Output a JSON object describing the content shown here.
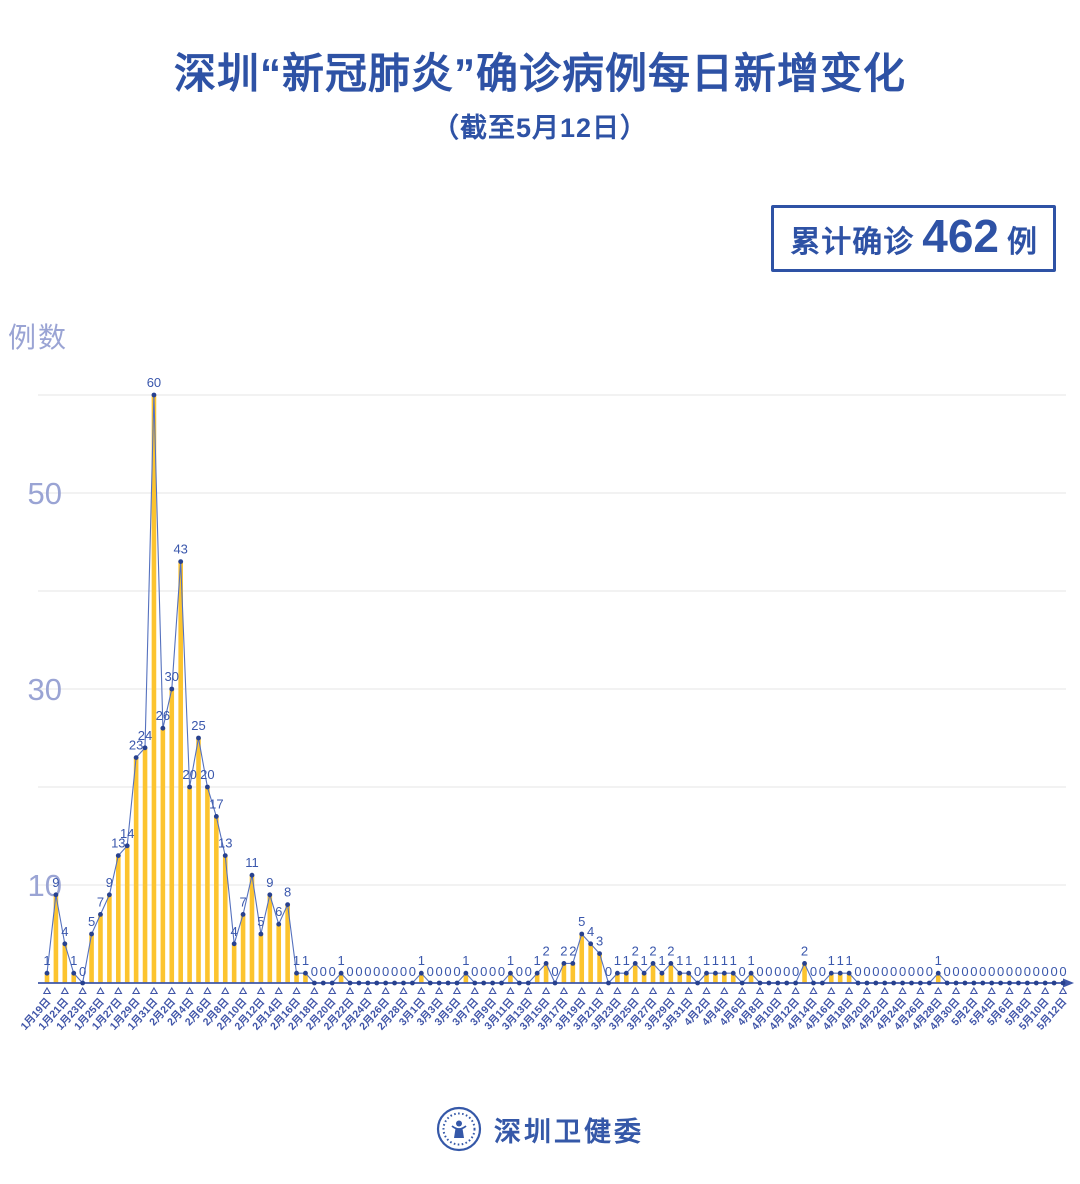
{
  "header": {
    "title": "深圳“新冠肺炎”确诊病例每日新增变化",
    "subtitle": "（截至5月12日）"
  },
  "summary_badge": {
    "prefix": "累计确诊",
    "value": "462",
    "suffix": "例"
  },
  "footer": {
    "org": "深圳卫健委"
  },
  "colors": {
    "primary_blue": "#2E52A5",
    "bar_yellow": "#FCC42F",
    "line_blue": "#5571BE",
    "dot_blue": "#27418F",
    "value_label_blue": "#3A57AC",
    "axis_blue": "#3E57A8",
    "x_tick_label_blue": "#4055A8",
    "y_label_periwinkle": "#9AA4D4",
    "gridline_gray": "#E9E9E9"
  },
  "chart_data": {
    "type": "bar",
    "title": "深圳“新冠肺炎”确诊病例每日新增变化",
    "subtitle": "（截至5月12日）",
    "annotation": "累计确诊 462 例",
    "total": 462,
    "xlabel": "",
    "ylabel": "例数",
    "ylim": [
      0,
      62
    ],
    "yticks_labeled": [
      10,
      30,
      50
    ],
    "gridlines": [
      10,
      20,
      30,
      40,
      50,
      60
    ],
    "grid": true,
    "legend": "none",
    "x_label_interval": 2,
    "x": [
      "1月19日",
      "1月20日",
      "1月21日",
      "1月22日",
      "1月23日",
      "1月24日",
      "1月25日",
      "1月26日",
      "1月27日",
      "1月28日",
      "1月29日",
      "1月30日",
      "1月31日",
      "2月1日",
      "2月2日",
      "2月3日",
      "2月4日",
      "2月5日",
      "2月6日",
      "2月7日",
      "2月8日",
      "2月9日",
      "2月10日",
      "2月11日",
      "2月12日",
      "2月13日",
      "2月14日",
      "2月15日",
      "2月16日",
      "2月17日",
      "2月18日",
      "2月19日",
      "2月20日",
      "2月21日",
      "2月22日",
      "2月23日",
      "2月24日",
      "2月25日",
      "2月26日",
      "2月27日",
      "2月28日",
      "2月29日",
      "3月1日",
      "3月2日",
      "3月3日",
      "3月4日",
      "3月5日",
      "3月6日",
      "3月7日",
      "3月8日",
      "3月9日",
      "3月10日",
      "3月11日",
      "3月12日",
      "3月13日",
      "3月14日",
      "3月15日",
      "3月16日",
      "3月17日",
      "3月18日",
      "3月19日",
      "3月20日",
      "3月21日",
      "3月22日",
      "3月23日",
      "3月24日",
      "3月25日",
      "3月26日",
      "3月27日",
      "3月28日",
      "3月29日",
      "3月30日",
      "3月31日",
      "4月1日",
      "4月2日",
      "4月3日",
      "4月4日",
      "4月5日",
      "4月6日",
      "4月7日",
      "4月8日",
      "4月9日",
      "4月10日",
      "4月11日",
      "4月12日",
      "4月13日",
      "4月14日",
      "4月15日",
      "4月16日",
      "4月17日",
      "4月18日",
      "4月19日",
      "4月20日",
      "4月21日",
      "4月22日",
      "4月23日",
      "4月24日",
      "4月25日",
      "4月26日",
      "4月27日",
      "4月28日",
      "4月29日",
      "4月30日",
      "5月1日",
      "5月2日",
      "5月3日",
      "5月4日",
      "5月5日",
      "5月6日",
      "5月7日",
      "5月8日",
      "5月9日",
      "5月10日",
      "5月11日",
      "5月12日"
    ],
    "values": [
      1,
      9,
      4,
      1,
      0,
      5,
      7,
      9,
      13,
      14,
      23,
      24,
      60,
      26,
      30,
      43,
      20,
      25,
      20,
      17,
      13,
      4,
      7,
      11,
      5,
      9,
      6,
      8,
      1,
      1,
      0,
      0,
      0,
      1,
      0,
      0,
      0,
      0,
      0,
      0,
      0,
      0,
      1,
      0,
      0,
      0,
      0,
      1,
      0,
      0,
      0,
      0,
      1,
      0,
      0,
      1,
      2,
      0,
      2,
      2,
      5,
      4,
      3,
      0,
      1,
      1,
      2,
      1,
      2,
      1,
      2,
      1,
      1,
      0,
      1,
      1,
      1,
      1,
      0,
      1,
      0,
      0,
      0,
      0,
      0,
      2,
      0,
      0,
      1,
      1,
      1,
      0,
      0,
      0,
      0,
      0,
      0,
      0,
      0,
      0,
      1,
      0,
      0,
      0,
      0,
      0,
      0,
      0,
      0,
      0,
      0,
      0,
      0,
      0,
      0
    ]
  }
}
